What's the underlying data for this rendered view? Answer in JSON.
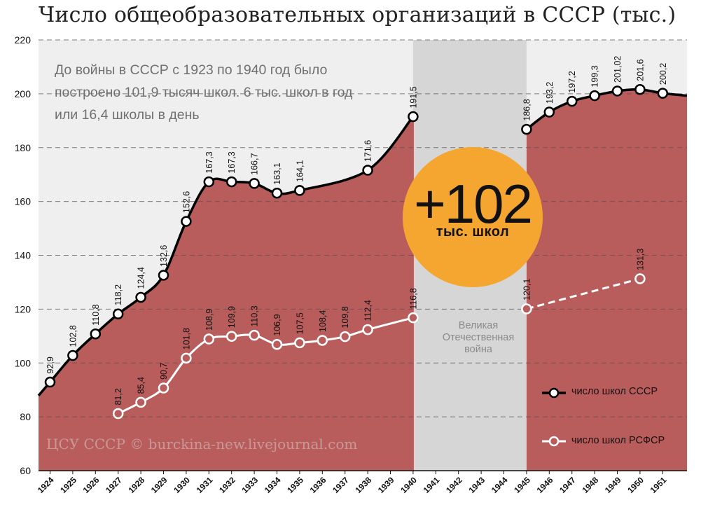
{
  "chart_data": {
    "type": "area",
    "title": "Число общеобразовательных организаций в СССР (тыс.)",
    "ylim": [
      60,
      220
    ],
    "yticks": [
      "60",
      "80",
      "100",
      "120",
      "140",
      "160",
      "180",
      "200",
      "220"
    ],
    "x": [
      "1924",
      "1925",
      "1926",
      "1927",
      "1928",
      "1929",
      "1930",
      "1931",
      "1932",
      "1933",
      "1934",
      "1935",
      "1936",
      "1937",
      "1938",
      "1939",
      "1940",
      "1941",
      "1942",
      "1943",
      "1944",
      "1945",
      "1946",
      "1947",
      "1948",
      "1949",
      "1950",
      "1951"
    ],
    "grid": "horizontal dashed",
    "legend_position": "bottom-right",
    "series": [
      {
        "name": "число школ СССР",
        "color": "#000000",
        "points": [
          {
            "x": 1924,
            "y": 92.9,
            "label": "92,9"
          },
          {
            "x": 1925,
            "y": 102.8,
            "label": "102,8"
          },
          {
            "x": 1926,
            "y": 110.8,
            "label": "110,8"
          },
          {
            "x": 1927,
            "y": 118.2,
            "label": "118,2"
          },
          {
            "x": 1928,
            "y": 124.4,
            "label": "124,4"
          },
          {
            "x": 1929,
            "y": 132.6,
            "label": "132,6"
          },
          {
            "x": 1930,
            "y": 152.6,
            "label": "152,6"
          },
          {
            "x": 1931,
            "y": 167.3,
            "label": "167,3"
          },
          {
            "x": 1932,
            "y": 167.3,
            "label": "167,3"
          },
          {
            "x": 1933,
            "y": 166.7,
            "label": "166,7"
          },
          {
            "x": 1934,
            "y": 163.1,
            "label": "163,1"
          },
          {
            "x": 1935,
            "y": 164.1,
            "label": "164,1"
          },
          {
            "x": 1938,
            "y": 171.6,
            "label": "171,6"
          },
          {
            "x": 1940,
            "y": 191.5,
            "label": "191,5"
          },
          {
            "x": 1945,
            "y": 186.8,
            "label": "186,8"
          },
          {
            "x": 1946,
            "y": 193.2,
            "label": "193,2"
          },
          {
            "x": 1947,
            "y": 197.2,
            "label": "197,2"
          },
          {
            "x": 1948,
            "y": 199.3,
            "label": "199,3"
          },
          {
            "x": 1949,
            "y": 201.02,
            "label": "201,02"
          },
          {
            "x": 1950,
            "y": 201.6,
            "label": "201,6"
          },
          {
            "x": 1951,
            "y": 200.2,
            "label": "200,2"
          }
        ]
      },
      {
        "name": "число школ РСФСР",
        "color": "#ffffff",
        "points": [
          {
            "x": 1927,
            "y": 81.2,
            "label": "81,2"
          },
          {
            "x": 1928,
            "y": 85.4,
            "label": "85,4"
          },
          {
            "x": 1929,
            "y": 90.7,
            "label": "90,7"
          },
          {
            "x": 1930,
            "y": 101.8,
            "label": "101,8"
          },
          {
            "x": 1931,
            "y": 108.9,
            "label": "108,9"
          },
          {
            "x": 1932,
            "y": 109.9,
            "label": "109,9"
          },
          {
            "x": 1933,
            "y": 110.3,
            "label": "110,3"
          },
          {
            "x": 1934,
            "y": 106.9,
            "label": "106,9"
          },
          {
            "x": 1935,
            "y": 107.5,
            "label": "107,5"
          },
          {
            "x": 1936,
            "y": 108.4,
            "label": "108,4"
          },
          {
            "x": 1937,
            "y": 109.8,
            "label": "109,8"
          },
          {
            "x": 1938,
            "y": 112.4,
            "label": "112,4"
          },
          {
            "x": 1940,
            "y": 116.8,
            "label": "116,8"
          },
          {
            "x": 1945,
            "y": 120.1,
            "label": "120,1"
          },
          {
            "x": 1950,
            "y": 131.3,
            "label": "131,3"
          }
        ]
      }
    ],
    "war_band": {
      "from": 1940,
      "to": 1945,
      "label_lines": [
        "Великая",
        "Отечественная",
        "война"
      ]
    },
    "colors": {
      "area": "#b95c5c",
      "plot_bg": "#efefef",
      "war_band": "#d6d6d6",
      "badge": "#f5a631",
      "grid": "#555555"
    }
  },
  "annotation": {
    "lines": [
      "До войны в СССР с 1923 по 1940 год было",
      "построено 101,9 тысяч школ. 6 тыс. школ в год",
      "или 16,4 школы в день"
    ]
  },
  "badge": {
    "value": "+102",
    "subtitle": "тыс. школ"
  },
  "source": "ЦСУ СССР © burckina-new.livejournal.com"
}
